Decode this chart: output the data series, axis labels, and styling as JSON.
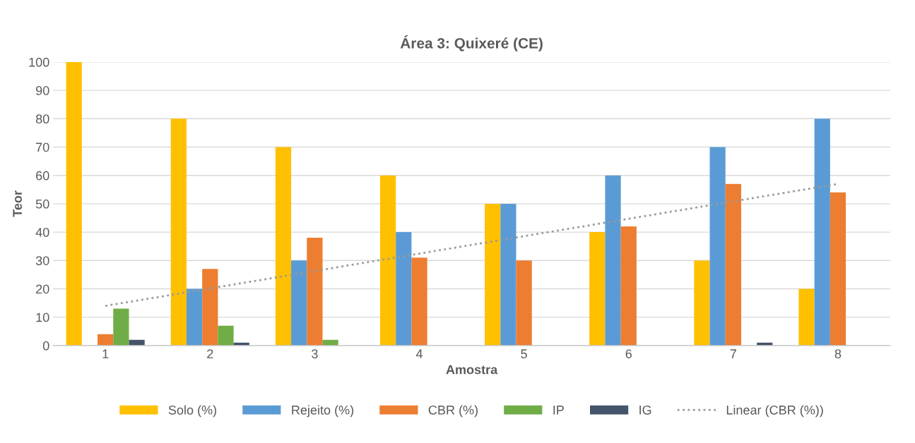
{
  "chart_data": {
    "type": "bar",
    "title": "Área 3: Quixeré (CE)",
    "xlabel": "Amostra",
    "ylabel": "Teor",
    "categories": [
      "1",
      "2",
      "3",
      "4",
      "5",
      "6",
      "7",
      "8"
    ],
    "series": [
      {
        "name": "Solo (%)",
        "color": "#ffc000",
        "values": [
          100,
          80,
          70,
          60,
          50,
          40,
          30,
          20
        ]
      },
      {
        "name": "Rejeito (%)",
        "color": "#5b9bd5",
        "values": [
          0,
          20,
          30,
          40,
          50,
          60,
          70,
          80
        ]
      },
      {
        "name": "CBR (%)",
        "color": "#ed7d31",
        "values": [
          4,
          27,
          38,
          31,
          30,
          42,
          57,
          54
        ]
      },
      {
        "name": "IP",
        "color": "#70ad47",
        "values": [
          13,
          7,
          2,
          0,
          0,
          0,
          0,
          0
        ]
      },
      {
        "name": "IG",
        "color": "#44546a",
        "values": [
          2,
          1,
          0,
          0,
          0,
          0,
          1,
          0
        ]
      },
      {
        "name": "Linear (CBR (%))",
        "type": "line",
        "color": "#9a9a9a",
        "line_style": "dotted",
        "x": [
          "1",
          "8"
        ],
        "values": [
          14,
          57
        ]
      }
    ],
    "ylim": [
      0,
      100
    ],
    "yticks": [
      0,
      10,
      20,
      30,
      40,
      50,
      60,
      70,
      80,
      90,
      100
    ],
    "grid": "y",
    "legend": "bottom"
  }
}
